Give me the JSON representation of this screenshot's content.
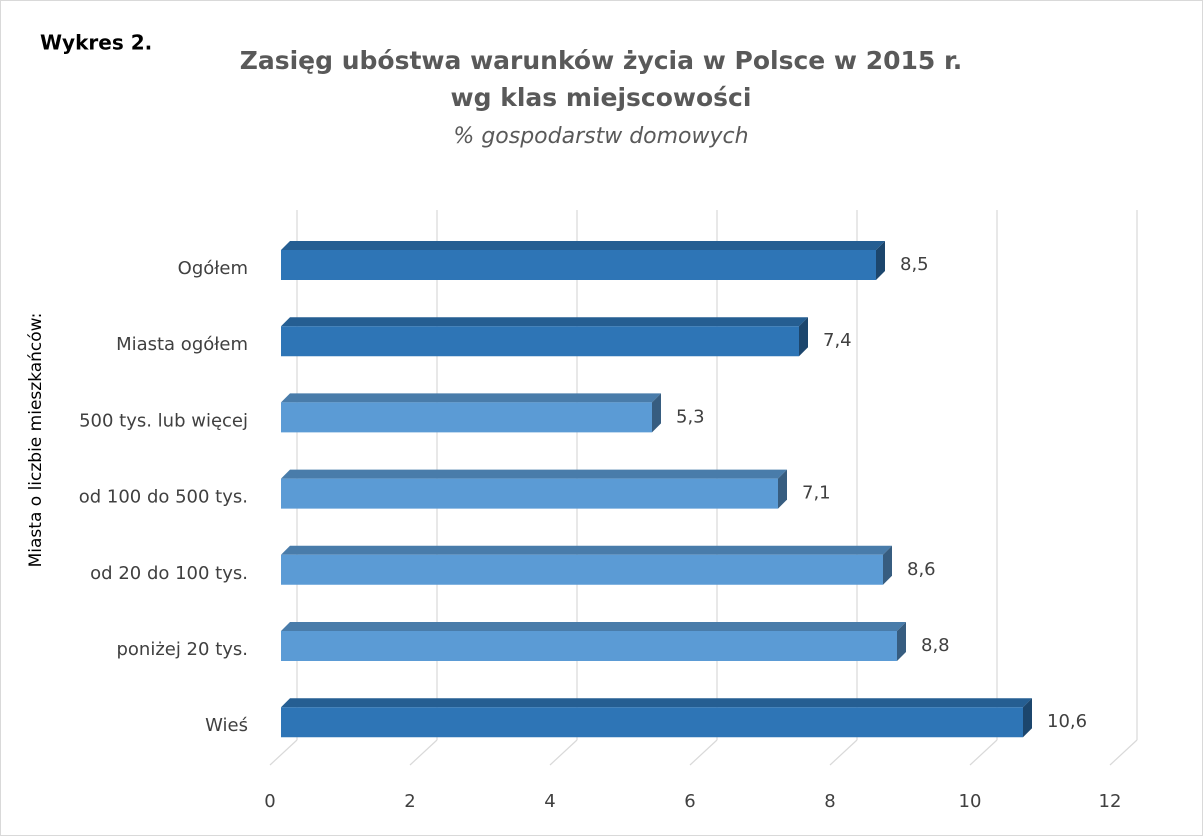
{
  "chart_data": {
    "type": "bar3d-horizontal",
    "label": "Wykres 2.",
    "title": [
      "Zasięg ubóstwa warunków życia w Polsce w 2015 r.",
      "wg klas miejscowości"
    ],
    "subtitle": "% gospodarstw domowych",
    "y_axis_label": "Miasta o liczbie mieszkańców:",
    "categories": [
      "Ogółem",
      "Miasta ogółem",
      "500 tys. lub więcej",
      "od 100 do 500 tys.",
      "od 20 do 100 tys.",
      "poniżej 20 tys.",
      "Wieś"
    ],
    "values": [
      8.5,
      7.4,
      5.3,
      7.1,
      8.6,
      8.8,
      10.6
    ],
    "value_labels": [
      "8,5",
      "7,4",
      "5,3",
      "7,1",
      "8,6",
      "8,8",
      "10,6"
    ],
    "colors": [
      "#2e75b6",
      "#2e75b6",
      "#5b9bd5",
      "#5b9bd5",
      "#5b9bd5",
      "#5b9bd5",
      "#2e75b6"
    ],
    "xlim": [
      0,
      12
    ],
    "xticks": [
      0,
      2,
      4,
      6,
      8,
      10,
      12
    ],
    "grid": true
  }
}
